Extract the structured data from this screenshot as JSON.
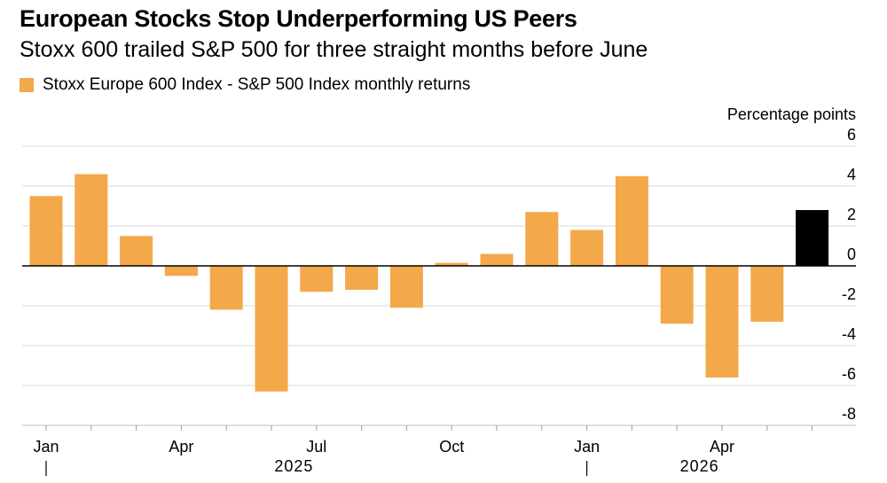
{
  "title": "European Stocks Stop Underperforming US Peers",
  "subtitle": "Stoxx 600 trailed S&P 500 for three straight months before June",
  "colors": {
    "bar": "#f3a84a",
    "highlight": "#000000",
    "grid": "#d9d9d9",
    "zero": "#000000"
  },
  "chart_data": {
    "type": "bar",
    "legend": {
      "label": "Stoxx Europe 600 Index - S&P 500 Index monthly returns",
      "placement": "top-left"
    },
    "ylabel": "Percentage points",
    "ylim": [
      -8,
      6
    ],
    "yticks": [
      6,
      4,
      2,
      0,
      -2,
      -4,
      -6,
      -8
    ],
    "ytick_labels": [
      "6",
      "4",
      "2",
      "0",
      "-2",
      "-4",
      "-6",
      "-8"
    ],
    "grid": true,
    "categories": [
      "Jan 2025",
      "Feb 2025",
      "Mar 2025",
      "Apr 2025",
      "May 2025",
      "Jun 2025",
      "Jul 2025",
      "Aug 2025",
      "Sep 2025",
      "Oct 2025",
      "Nov 2025",
      "Dec 2025",
      "Jan 2026",
      "Feb 2026",
      "Mar 2026",
      "Apr 2026",
      "May 2026",
      "Jun 2026"
    ],
    "values": [
      3.5,
      4.6,
      1.5,
      -0.5,
      -2.2,
      -6.3,
      -1.3,
      -1.2,
      -2.1,
      0.15,
      0.6,
      2.7,
      1.8,
      4.5,
      -2.9,
      -5.6,
      -2.8,
      2.8
    ],
    "highlight_index": 17,
    "xtick_labels": [
      {
        "index": 0,
        "label": "Jan"
      },
      {
        "index": 3,
        "label": "Apr"
      },
      {
        "index": 6,
        "label": "Jul"
      },
      {
        "index": 9,
        "label": "Oct"
      },
      {
        "index": 12,
        "label": "Jan"
      },
      {
        "index": 15,
        "label": "Apr"
      }
    ],
    "year_labels": [
      {
        "start": 0,
        "end": 11,
        "label": "2025"
      },
      {
        "start": 12,
        "end": 17,
        "label": "2026"
      }
    ]
  }
}
